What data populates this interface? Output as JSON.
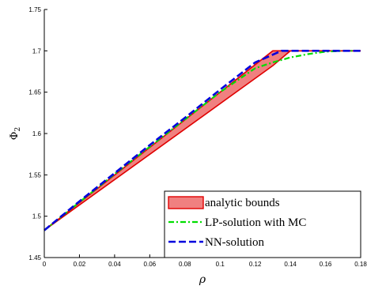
{
  "chart_data": {
    "type": "line",
    "xlabel": "ρ",
    "ylabel": "Φ2",
    "xlim": [
      0,
      0.18
    ],
    "ylim": [
      1.45,
      1.75
    ],
    "xticks": [
      0,
      0.02,
      0.04,
      0.06,
      0.08,
      0.1,
      0.12,
      0.14,
      0.16,
      0.18
    ],
    "xtick_labels": [
      "0",
      "0.02",
      "0.04",
      "0.06",
      "0.08",
      "0.1",
      "0.12",
      "0.14",
      "0.16",
      "0.18"
    ],
    "yticks": [
      1.45,
      1.5,
      1.55,
      1.6,
      1.65,
      1.7,
      1.75
    ],
    "ytick_labels": [
      "1.45",
      "1.5",
      "1.55",
      "1.6",
      "1.65",
      "1.7",
      "1.75"
    ],
    "grid": false,
    "legend_position": "bottom-right",
    "series": [
      {
        "name": "analytic bounds",
        "style": "filled-band",
        "stroke_color": "#e00000",
        "fill_color": "#f08080",
        "x": [
          0,
          0.13,
          0.14,
          0.18
        ],
        "upper": [
          1.483,
          1.7,
          1.7,
          1.7
        ],
        "lower": [
          1.483,
          1.682,
          1.7,
          1.7
        ]
      },
      {
        "name": "LP-solution with MC",
        "style": "dash-dot",
        "color": "#00dd00",
        "x": [
          0,
          0.02,
          0.04,
          0.06,
          0.08,
          0.1,
          0.12,
          0.13,
          0.14,
          0.15,
          0.16,
          0.17,
          0.18
        ],
        "y": [
          1.483,
          1.517,
          1.551,
          1.584,
          1.617,
          1.65,
          1.679,
          1.686,
          1.692,
          1.696,
          1.699,
          1.7,
          1.7
        ]
      },
      {
        "name": "NN-solution",
        "style": "dashed",
        "color": "#0000dd",
        "x": [
          0,
          0.02,
          0.04,
          0.06,
          0.08,
          0.1,
          0.12,
          0.135,
          0.14,
          0.18
        ],
        "y": [
          1.483,
          1.518,
          1.552,
          1.586,
          1.619,
          1.653,
          1.686,
          1.7,
          1.7,
          1.7
        ]
      }
    ]
  }
}
